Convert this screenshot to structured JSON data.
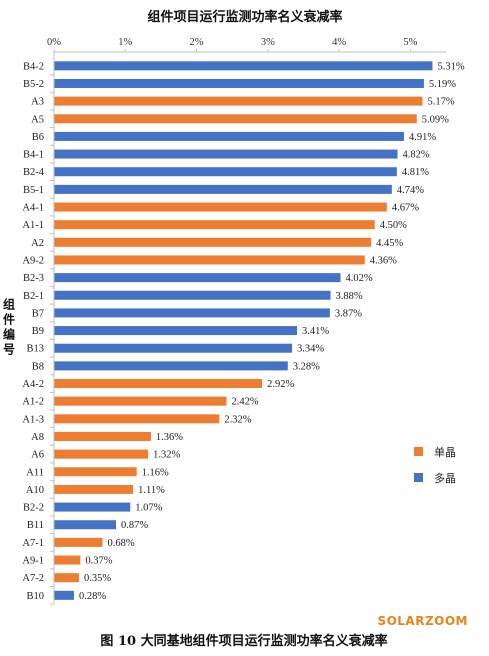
{
  "chart_data": {
    "type": "bar",
    "orientation": "horizontal",
    "title": "组件项目运行监测功率名义衰减率",
    "ylabel": "组件编号",
    "xlabel": "",
    "xlim": [
      0,
      5.5
    ],
    "x_ticks": [
      "0%",
      "1%",
      "2%",
      "3%",
      "4%",
      "5%"
    ],
    "x_tick_values": [
      0,
      1,
      2,
      3,
      4,
      5
    ],
    "axis_position": "top",
    "grid": false,
    "legend_position": "right",
    "legend": [
      {
        "name": "单晶",
        "color": "#ed7d31"
      },
      {
        "name": "多晶",
        "color": "#4472c4"
      }
    ],
    "categories": [
      "B4-2",
      "B5-2",
      "A3",
      "A5",
      "B6",
      "B4-1",
      "B2-4",
      "B5-1",
      "A4-1",
      "A1-1",
      "A2",
      "A9-2",
      "B2-3",
      "B2-1",
      "B7",
      "B9",
      "B13",
      "B8",
      "A4-2",
      "A1-2",
      "A1-3",
      "A8",
      "A6",
      "A11",
      "A10",
      "B2-2",
      "B11",
      "A7-1",
      "A9-1",
      "A7-2",
      "B10"
    ],
    "values": [
      5.31,
      5.19,
      5.17,
      5.09,
      4.91,
      4.82,
      4.81,
      4.74,
      4.67,
      4.5,
      4.45,
      4.36,
      4.02,
      3.88,
      3.87,
      3.41,
      3.34,
      3.28,
      2.92,
      2.42,
      2.32,
      1.36,
      1.32,
      1.16,
      1.11,
      1.07,
      0.87,
      0.68,
      0.37,
      0.35,
      0.28
    ],
    "data_labels": [
      "5.31%",
      "5.19%",
      "5.17%",
      "5.09%",
      "4.91%",
      "4.82%",
      "4.81%",
      "4.74%",
      "4.67%",
      "4.50%",
      "4.45%",
      "4.36%",
      "4.02%",
      "3.88%",
      "3.87%",
      "3.41%",
      "3.34%",
      "3.28%",
      "2.92%",
      "2.42%",
      "2.32%",
      "1.36%",
      "1.32%",
      "1.16%",
      "1.11%",
      "1.07%",
      "0.87%",
      "0.68%",
      "0.37%",
      "0.35%",
      "0.28%"
    ],
    "series_type": [
      "多晶",
      "多晶",
      "单晶",
      "单晶",
      "多晶",
      "多晶",
      "多晶",
      "多晶",
      "单晶",
      "单晶",
      "单晶",
      "单晶",
      "多晶",
      "多晶",
      "多晶",
      "多晶",
      "多晶",
      "多晶",
      "单晶",
      "单晶",
      "单晶",
      "单晶",
      "单晶",
      "单晶",
      "单晶",
      "多晶",
      "多晶",
      "单晶",
      "单晶",
      "单晶",
      "多晶"
    ]
  },
  "caption": "图 10 大同基地组件项目运行监测功率名义衰减率",
  "watermark": "SOLARZOOM"
}
